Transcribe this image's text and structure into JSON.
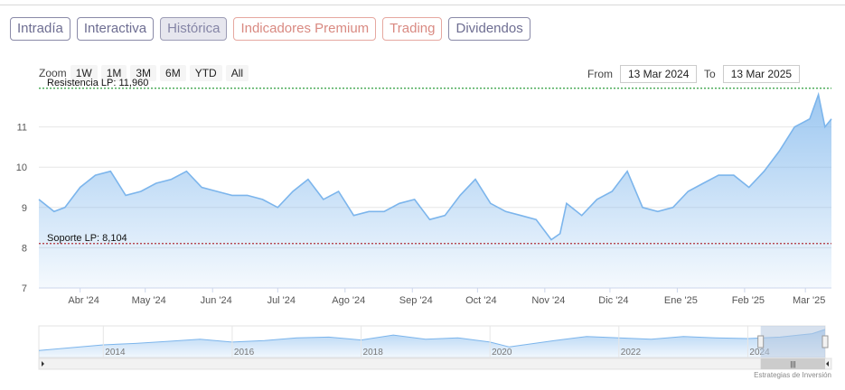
{
  "tabs": [
    {
      "label": "Intradía",
      "style": "normal"
    },
    {
      "label": "Interactiva",
      "style": "normal"
    },
    {
      "label": "Histórica",
      "style": "active"
    },
    {
      "label": "Indicadores Premium",
      "style": "premium"
    },
    {
      "label": "Trading",
      "style": "premium"
    },
    {
      "label": "Dividendos",
      "style": "normal"
    }
  ],
  "zoom": {
    "label": "Zoom",
    "buttons": [
      "1W",
      "1M",
      "3M",
      "6M",
      "YTD",
      "All"
    ]
  },
  "range": {
    "from_label": "From",
    "from_value": "13 Mar 2024",
    "to_label": "To",
    "to_value": "13 Mar 2025"
  },
  "credit": "Estrategias de Inversión",
  "colors": {
    "line": "#7cb5ec",
    "resistance": "#2e9e3e",
    "support": "#b0303a",
    "grid": "#e6e6e6",
    "navigator_mask": "#b7c9e0"
  },
  "chart_data": {
    "type": "area",
    "x": [
      "2024-03-13",
      "2024-03-20",
      "2024-03-25",
      "2024-04-01",
      "2024-04-08",
      "2024-04-15",
      "2024-04-22",
      "2024-04-29",
      "2024-05-06",
      "2024-05-13",
      "2024-05-20",
      "2024-05-27",
      "2024-06-03",
      "2024-06-10",
      "2024-06-17",
      "2024-06-24",
      "2024-07-01",
      "2024-07-08",
      "2024-07-15",
      "2024-07-22",
      "2024-07-29",
      "2024-08-05",
      "2024-08-12",
      "2024-08-19",
      "2024-08-26",
      "2024-09-02",
      "2024-09-09",
      "2024-09-16",
      "2024-09-23",
      "2024-09-30",
      "2024-10-07",
      "2024-10-14",
      "2024-10-21",
      "2024-10-28",
      "2024-11-04",
      "2024-11-08",
      "2024-11-11",
      "2024-11-18",
      "2024-11-25",
      "2024-12-02",
      "2024-12-09",
      "2024-12-16",
      "2024-12-23",
      "2024-12-30",
      "2025-01-06",
      "2025-01-13",
      "2025-01-20",
      "2025-01-27",
      "2025-02-03",
      "2025-02-10",
      "2025-02-17",
      "2025-02-24",
      "2025-03-03",
      "2025-03-07",
      "2025-03-10",
      "2025-03-13"
    ],
    "values": [
      9.2,
      8.9,
      9.0,
      9.5,
      9.8,
      9.9,
      9.3,
      9.4,
      9.6,
      9.7,
      9.9,
      9.5,
      9.4,
      9.3,
      9.3,
      9.2,
      9.0,
      9.4,
      9.7,
      9.2,
      9.4,
      8.8,
      8.9,
      8.9,
      9.1,
      9.2,
      8.7,
      8.8,
      9.3,
      9.7,
      9.1,
      8.9,
      8.8,
      8.7,
      8.2,
      8.35,
      9.1,
      8.8,
      9.2,
      9.4,
      9.9,
      9.0,
      8.9,
      9.0,
      9.4,
      9.6,
      9.8,
      9.8,
      9.5,
      9.9,
      10.4,
      11.0,
      11.2,
      11.8,
      11.0,
      11.2
    ],
    "ylim": [
      7,
      12
    ],
    "y_ticks": [
      "7",
      "8",
      "9",
      "10",
      "11"
    ],
    "x_ticks": [
      "Abr '24",
      "May '24",
      "Jun '24",
      "Jul '24",
      "Ago '24",
      "Sep '24",
      "Oct '24",
      "Nov '24",
      "Dic '24",
      "Ene '25",
      "Feb '25",
      "Mar '25"
    ],
    "x_tick_dates": [
      "2024-04-01",
      "2024-05-01",
      "2024-06-01",
      "2024-07-01",
      "2024-08-01",
      "2024-09-01",
      "2024-10-01",
      "2024-11-01",
      "2024-12-01",
      "2025-01-01",
      "2025-02-01",
      "2025-03-01"
    ],
    "resistance": {
      "label": "Resistencia LP: 11,960",
      "value": 11.96
    },
    "support": {
      "label": "Soporte LP: 8,104",
      "value": 8.104
    },
    "grid": true,
    "legend": "none"
  },
  "navigator": {
    "x_ticks": [
      "2014",
      "2016",
      "2018",
      "2020",
      "2022",
      "2024"
    ],
    "tick_years": [
      2014,
      2016,
      2018,
      2020,
      2022,
      2024
    ],
    "xlim": [
      2013,
      2025.2
    ],
    "years": [
      2013,
      2013.5,
      2014,
      2014.5,
      2015,
      2015.5,
      2016,
      2016.5,
      2017,
      2017.5,
      2018,
      2018.5,
      2019,
      2019.5,
      2020,
      2020.3,
      2020.6,
      2021,
      2021.5,
      2022,
      2022.5,
      2023,
      2023.5,
      2024,
      2024.5,
      2025,
      2025.2
    ],
    "values": [
      9.0,
      9.4,
      9.8,
      10.0,
      10.3,
      10.6,
      10.2,
      10.4,
      10.8,
      10.9,
      10.5,
      11.2,
      10.6,
      10.8,
      10.2,
      9.5,
      9.9,
      10.4,
      11.0,
      10.8,
      10.6,
      11.0,
      10.8,
      10.7,
      10.9,
      11.4,
      12.0
    ],
    "ylim": [
      8,
      12.5
    ],
    "selection": [
      2024.2,
      2025.2
    ]
  }
}
